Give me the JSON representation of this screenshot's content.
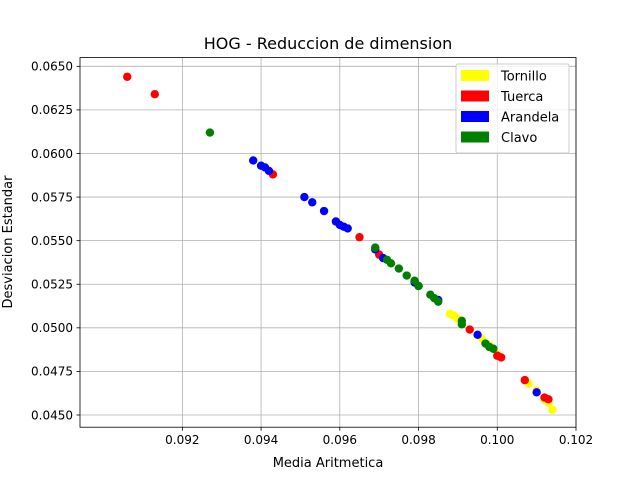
{
  "chart_data": {
    "type": "scatter",
    "title": "HOG - Reduccion de dimension",
    "xlabel": "Media Aritmetica",
    "ylabel": "Desviacion Estandar",
    "xlim": [
      0.0894,
      0.102
    ],
    "ylim": [
      0.0443,
      0.0655
    ],
    "xticks": [
      "0.092",
      "0.094",
      "0.096",
      "0.098",
      "0.100",
      "0.102"
    ],
    "xtick_values": [
      0.092,
      0.094,
      0.096,
      0.098,
      0.1,
      0.102
    ],
    "yticks": [
      "0.0450",
      "0.0475",
      "0.0500",
      "0.0525",
      "0.0550",
      "0.0575",
      "0.0600",
      "0.0625",
      "0.0650"
    ],
    "ytick_values": [
      0.045,
      0.0475,
      0.05,
      0.0525,
      0.055,
      0.0575,
      0.06,
      0.0625,
      0.065
    ],
    "grid": true,
    "legend_position": "top-right",
    "series": [
      {
        "name": "Tornillo",
        "color": "#ffff00",
        "points": [
          [
            0.0988,
            0.0508
          ],
          [
            0.0989,
            0.0507
          ],
          [
            0.099,
            0.0505
          ],
          [
            0.0991,
            0.0503
          ],
          [
            0.0996,
            0.0494
          ],
          [
            0.0998,
            0.049
          ],
          [
            0.1,
            0.0485
          ],
          [
            0.1008,
            0.0468
          ],
          [
            0.101,
            0.0464
          ],
          [
            0.1013,
            0.0457
          ],
          [
            0.1014,
            0.0453
          ],
          [
            0.1012,
            0.0459
          ]
        ]
      },
      {
        "name": "Tuerca",
        "color": "#ff0000",
        "points": [
          [
            0.0906,
            0.0644
          ],
          [
            0.0913,
            0.0634
          ],
          [
            0.0943,
            0.0588
          ],
          [
            0.0965,
            0.0552
          ],
          [
            0.097,
            0.0542
          ],
          [
            0.0993,
            0.0499
          ],
          [
            0.1,
            0.0484
          ],
          [
            0.1001,
            0.0483
          ],
          [
            0.1007,
            0.047
          ],
          [
            0.1012,
            0.046
          ],
          [
            0.1013,
            0.0459
          ]
        ]
      },
      {
        "name": "Arandela",
        "color": "#0000ff",
        "points": [
          [
            0.0938,
            0.0596
          ],
          [
            0.094,
            0.0593
          ],
          [
            0.0941,
            0.0592
          ],
          [
            0.0942,
            0.059
          ],
          [
            0.0951,
            0.0575
          ],
          [
            0.0953,
            0.0572
          ],
          [
            0.0956,
            0.0567
          ],
          [
            0.0959,
            0.0561
          ],
          [
            0.096,
            0.0559
          ],
          [
            0.0961,
            0.0558
          ],
          [
            0.0962,
            0.0557
          ],
          [
            0.0969,
            0.0545
          ],
          [
            0.0971,
            0.054
          ],
          [
            0.0979,
            0.0526
          ],
          [
            0.098,
            0.0524
          ],
          [
            0.0985,
            0.0516
          ],
          [
            0.0995,
            0.0496
          ],
          [
            0.101,
            0.0463
          ]
        ]
      },
      {
        "name": "Clavo",
        "color": "#008000",
        "points": [
          [
            0.0927,
            0.0612
          ],
          [
            0.0969,
            0.0546
          ],
          [
            0.0972,
            0.0539
          ],
          [
            0.0973,
            0.0537
          ],
          [
            0.0975,
            0.0534
          ],
          [
            0.0977,
            0.053
          ],
          [
            0.0979,
            0.0527
          ],
          [
            0.098,
            0.0524
          ],
          [
            0.0983,
            0.0519
          ],
          [
            0.0984,
            0.0517
          ],
          [
            0.0985,
            0.0515
          ],
          [
            0.0991,
            0.0504
          ],
          [
            0.0991,
            0.0502
          ],
          [
            0.0997,
            0.0491
          ],
          [
            0.0998,
            0.0489
          ],
          [
            0.0999,
            0.0488
          ]
        ]
      }
    ]
  }
}
